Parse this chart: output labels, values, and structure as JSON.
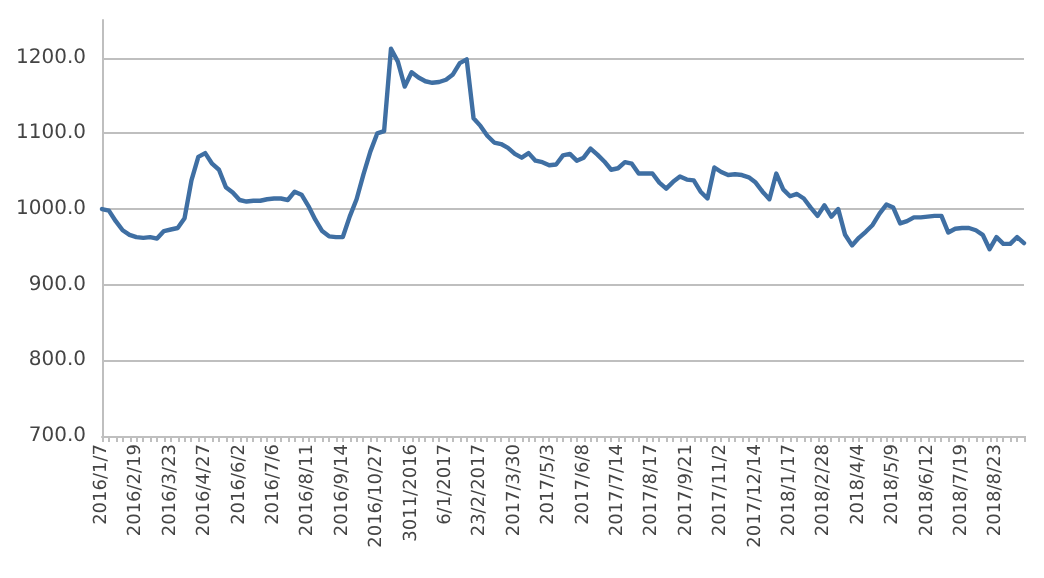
{
  "chart_data": {
    "type": "line",
    "categories": [
      "2016/1/7",
      null,
      null,
      null,
      null,
      "2016/2/19",
      null,
      null,
      null,
      null,
      "2016/3/23",
      null,
      null,
      null,
      null,
      "2016/4/27",
      null,
      null,
      null,
      null,
      "2016/6/2",
      null,
      null,
      null,
      null,
      "2016/7/6",
      null,
      null,
      null,
      null,
      "2016/8/11",
      null,
      null,
      null,
      null,
      "2016/9/14",
      null,
      null,
      null,
      null,
      "2016/10/27",
      null,
      null,
      null,
      null,
      "3011/2016",
      null,
      null,
      null,
      null,
      "6/1/2017",
      null,
      null,
      null,
      null,
      "23/2/2017",
      null,
      null,
      null,
      null,
      "2017/3/30",
      null,
      null,
      null,
      null,
      "2017/5/3",
      null,
      null,
      null,
      null,
      "2017/6/8",
      null,
      null,
      null,
      null,
      "2017/7/14",
      null,
      null,
      null,
      null,
      "2017/8/17",
      null,
      null,
      null,
      null,
      "2017/9/21",
      null,
      null,
      null,
      null,
      "2017/11/2",
      null,
      null,
      null,
      null,
      "2017/12/14",
      null,
      null,
      null,
      null,
      "2018/1/17",
      null,
      null,
      null,
      null,
      "2018/2/28",
      null,
      null,
      null,
      null,
      "2018/4/4",
      null,
      null,
      null,
      null,
      "2018/5/9",
      null,
      null,
      null,
      null,
      "2018/6/12",
      null,
      null,
      null,
      null,
      "2018/7/19",
      null,
      null,
      null,
      null,
      "2018/8/23",
      null,
      null,
      null,
      null
    ],
    "series": [
      {
        "color": "#3f6fa3",
        "values": [
          1000,
          998,
          984,
          972,
          966,
          963,
          962,
          963,
          961,
          971,
          973,
          975,
          988,
          1038,
          1069,
          1074,
          1060,
          1052,
          1029,
          1022,
          1012,
          1010,
          1011,
          1011,
          1013,
          1014,
          1014,
          1012,
          1023,
          1019,
          1004,
          986,
          971,
          964,
          963,
          963,
          990,
          1013,
          1046,
          1076,
          1100,
          1103,
          1212,
          1195,
          1162,
          1181,
          1174,
          1169,
          1167,
          1168,
          1171,
          1178,
          1193,
          1198,
          1120,
          1110,
          1097,
          1088,
          1086,
          1081,
          1073,
          1068,
          1074,
          1064,
          1062,
          1058,
          1059,
          1071,
          1073,
          1064,
          1068,
          1080,
          1072,
          1063,
          1052,
          1054,
          1062,
          1060,
          1047,
          1047,
          1047,
          1035,
          1027,
          1036,
          1043,
          1039,
          1038,
          1023,
          1014,
          1055,
          1049,
          1045,
          1046,
          1045,
          1042,
          1035,
          1023,
          1013,
          1047,
          1026,
          1017,
          1020,
          1014,
          1002,
          991,
          1005,
          990,
          1000,
          966,
          952,
          962,
          970,
          979,
          994,
          1006,
          1002,
          981,
          984,
          989,
          989,
          990,
          991,
          991,
          969,
          974,
          975,
          975,
          972,
          966,
          947,
          963,
          954,
          954,
          963,
          955
        ]
      }
    ],
    "ylim": [
      700,
      1250
    ],
    "yticks": [
      {
        "value": 700,
        "label": "700.0"
      },
      {
        "value": 800,
        "label": "800.0"
      },
      {
        "value": 900,
        "label": "900.0"
      },
      {
        "value": 1000,
        "label": "1000.0"
      },
      {
        "value": 1100,
        "label": "1100.0"
      },
      {
        "value": 1200,
        "label": "1200.0"
      }
    ],
    "grid": "y",
    "marker": "none",
    "line_style": "solid"
  }
}
